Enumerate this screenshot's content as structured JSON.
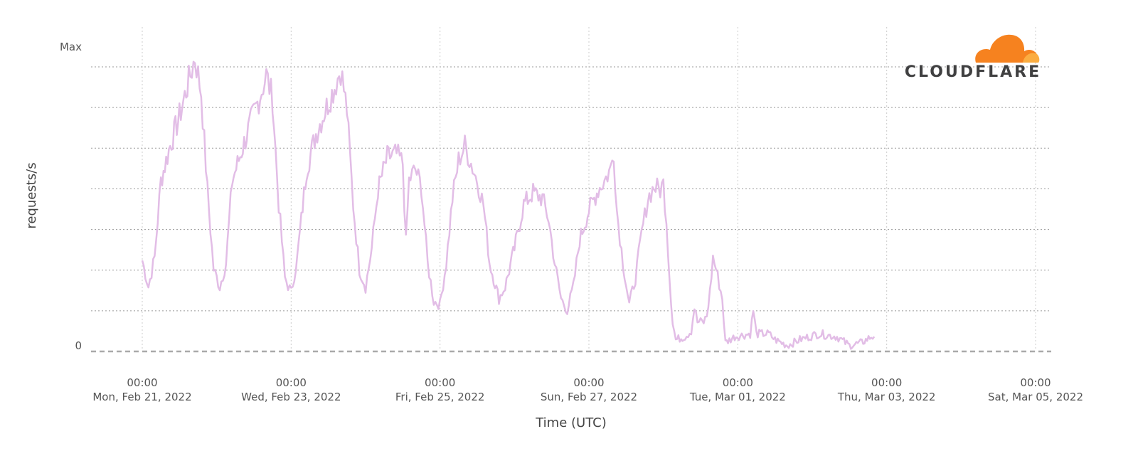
{
  "chart_data": {
    "type": "line",
    "xlabel": "Time (UTC)",
    "ylabel": "requests/s",
    "y_ticks": [
      "0",
      "Max"
    ],
    "x_ticks": [
      {
        "time": "00:00",
        "date": "Mon, Feb 21, 2022"
      },
      {
        "time": "00:00",
        "date": "Wed, Feb 23, 2022"
      },
      {
        "time": "00:00",
        "date": "Fri, Feb 25, 2022"
      },
      {
        "time": "00:00",
        "date": "Sun, Feb 27, 2022"
      },
      {
        "time": "00:00",
        "date": "Tue, Mar 01, 2022"
      },
      {
        "time": "00:00",
        "date": "Thu, Mar 03, 2022"
      },
      {
        "time": "00:00",
        "date": "Sat, Mar 05, 2022"
      }
    ],
    "x_range": [
      "2022-02-20T17:00",
      "2022-03-05T00:00"
    ],
    "ylim": [
      0,
      1.05
    ],
    "grid": true,
    "series": [
      {
        "color": "#e2bde6",
        "points": [
          [
            "2022-02-21T00:00",
            0.31
          ],
          [
            "2022-02-21T02:00",
            0.22
          ],
          [
            "2022-02-21T04:00",
            0.32
          ],
          [
            "2022-02-21T06:00",
            0.58
          ],
          [
            "2022-02-21T09:00",
            0.7
          ],
          [
            "2022-02-21T12:00",
            0.8
          ],
          [
            "2022-02-21T15:00",
            0.92
          ],
          [
            "2022-02-21T17:00",
            1.0
          ],
          [
            "2022-02-21T19:00",
            0.88
          ],
          [
            "2022-02-21T21:00",
            0.55
          ],
          [
            "2022-02-21T23:00",
            0.28
          ],
          [
            "2022-02-22T01:00",
            0.22
          ],
          [
            "2022-02-22T03:00",
            0.3
          ],
          [
            "2022-02-22T05:00",
            0.58
          ],
          [
            "2022-02-22T08:00",
            0.68
          ],
          [
            "2022-02-22T11:00",
            0.78
          ],
          [
            "2022-02-22T14:00",
            0.87
          ],
          [
            "2022-02-22T16:00",
            0.94
          ],
          [
            "2022-02-22T18:00",
            0.86
          ],
          [
            "2022-02-22T20:00",
            0.5
          ],
          [
            "2022-02-22T22:00",
            0.25
          ],
          [
            "2022-02-23T00:00",
            0.2
          ],
          [
            "2022-02-23T02:00",
            0.32
          ],
          [
            "2022-02-23T05:00",
            0.62
          ],
          [
            "2022-02-23T08:00",
            0.74
          ],
          [
            "2022-02-23T11:00",
            0.82
          ],
          [
            "2022-02-23T14:00",
            0.9
          ],
          [
            "2022-02-23T16:00",
            0.96
          ],
          [
            "2022-02-23T18:00",
            0.82
          ],
          [
            "2022-02-23T20:00",
            0.5
          ],
          [
            "2022-02-23T22:00",
            0.28
          ],
          [
            "2022-02-24T00:00",
            0.22
          ],
          [
            "2022-02-24T02:00",
            0.35
          ],
          [
            "2022-02-24T04:00",
            0.55
          ],
          [
            "2022-02-24T07:00",
            0.66
          ],
          [
            "2022-02-24T10:00",
            0.67
          ],
          [
            "2022-02-24T12:00",
            0.64
          ],
          [
            "2022-02-24T13:00",
            0.37
          ],
          [
            "2022-02-24T14:00",
            0.58
          ],
          [
            "2022-02-24T16:00",
            0.62
          ],
          [
            "2022-02-24T18:00",
            0.56
          ],
          [
            "2022-02-24T20:00",
            0.3
          ],
          [
            "2022-02-24T22:00",
            0.17
          ],
          [
            "2022-02-25T00:00",
            0.16
          ],
          [
            "2022-02-25T02:00",
            0.3
          ],
          [
            "2022-02-25T04:00",
            0.52
          ],
          [
            "2022-02-25T06:00",
            0.65
          ],
          [
            "2022-02-25T08:00",
            0.7
          ],
          [
            "2022-02-25T10:00",
            0.64
          ],
          [
            "2022-02-25T12:00",
            0.58
          ],
          [
            "2022-02-25T14:00",
            0.5
          ],
          [
            "2022-02-25T16:00",
            0.3
          ],
          [
            "2022-02-25T19:00",
            0.18
          ],
          [
            "2022-02-25T21:00",
            0.22
          ],
          [
            "2022-02-26T00:00",
            0.35
          ],
          [
            "2022-02-26T03:00",
            0.5
          ],
          [
            "2022-02-26T06:00",
            0.54
          ],
          [
            "2022-02-26T09:00",
            0.52
          ],
          [
            "2022-02-26T11:00",
            0.45
          ],
          [
            "2022-02-26T13:00",
            0.3
          ],
          [
            "2022-02-26T15:00",
            0.18
          ],
          [
            "2022-02-26T17:00",
            0.14
          ],
          [
            "2022-02-26T19:00",
            0.22
          ],
          [
            "2022-02-26T21:00",
            0.38
          ],
          [
            "2022-02-27T00:00",
            0.48
          ],
          [
            "2022-02-27T03:00",
            0.55
          ],
          [
            "2022-02-27T05:00",
            0.58
          ],
          [
            "2022-02-27T07:00",
            0.62
          ],
          [
            "2022-02-27T08:00",
            0.68
          ],
          [
            "2022-02-27T09:00",
            0.48
          ],
          [
            "2022-02-27T11:00",
            0.3
          ],
          [
            "2022-02-27T13:00",
            0.16
          ],
          [
            "2022-02-27T15:00",
            0.25
          ],
          [
            "2022-02-27T17:00",
            0.4
          ],
          [
            "2022-02-27T19:00",
            0.52
          ],
          [
            "2022-02-27T21:00",
            0.56
          ],
          [
            "2022-02-27T23:00",
            0.55
          ],
          [
            "2022-02-28T00:00",
            0.57
          ],
          [
            "2022-02-28T01:00",
            0.45
          ],
          [
            "2022-02-28T02:00",
            0.25
          ],
          [
            "2022-02-28T03:00",
            0.1
          ],
          [
            "2022-02-28T04:00",
            0.04
          ],
          [
            "2022-02-28T07:00",
            0.05
          ],
          [
            "2022-02-28T09:00",
            0.07
          ],
          [
            "2022-02-28T10:00",
            0.15
          ],
          [
            "2022-02-28T11:00",
            0.1
          ],
          [
            "2022-02-28T13:00",
            0.1
          ],
          [
            "2022-02-28T14:00",
            0.12
          ],
          [
            "2022-02-28T15:00",
            0.2
          ],
          [
            "2022-02-28T16:00",
            0.32
          ],
          [
            "2022-02-28T17:00",
            0.28
          ],
          [
            "2022-02-28T19:00",
            0.18
          ],
          [
            "2022-02-28T20:00",
            0.03
          ],
          [
            "2022-02-28T23:00",
            0.05
          ],
          [
            "2022-03-01T04:00",
            0.06
          ],
          [
            "2022-03-01T05:00",
            0.14
          ],
          [
            "2022-03-01T06:00",
            0.06
          ],
          [
            "2022-03-01T10:00",
            0.06
          ],
          [
            "2022-03-01T12:00",
            0.04
          ],
          [
            "2022-03-01T16:00",
            0.02
          ],
          [
            "2022-03-01T20:00",
            0.04
          ],
          [
            "2022-03-02T02:00",
            0.06
          ],
          [
            "2022-03-02T08:00",
            0.05
          ],
          [
            "2022-03-02T12:00",
            0.02
          ],
          [
            "2022-03-02T16:00",
            0.03
          ],
          [
            "2022-03-02T19:00",
            0.05
          ],
          [
            "2022-03-02T20:00",
            0.05
          ]
        ]
      }
    ]
  },
  "branding": {
    "logo_text": "CLOUDFLARE"
  }
}
